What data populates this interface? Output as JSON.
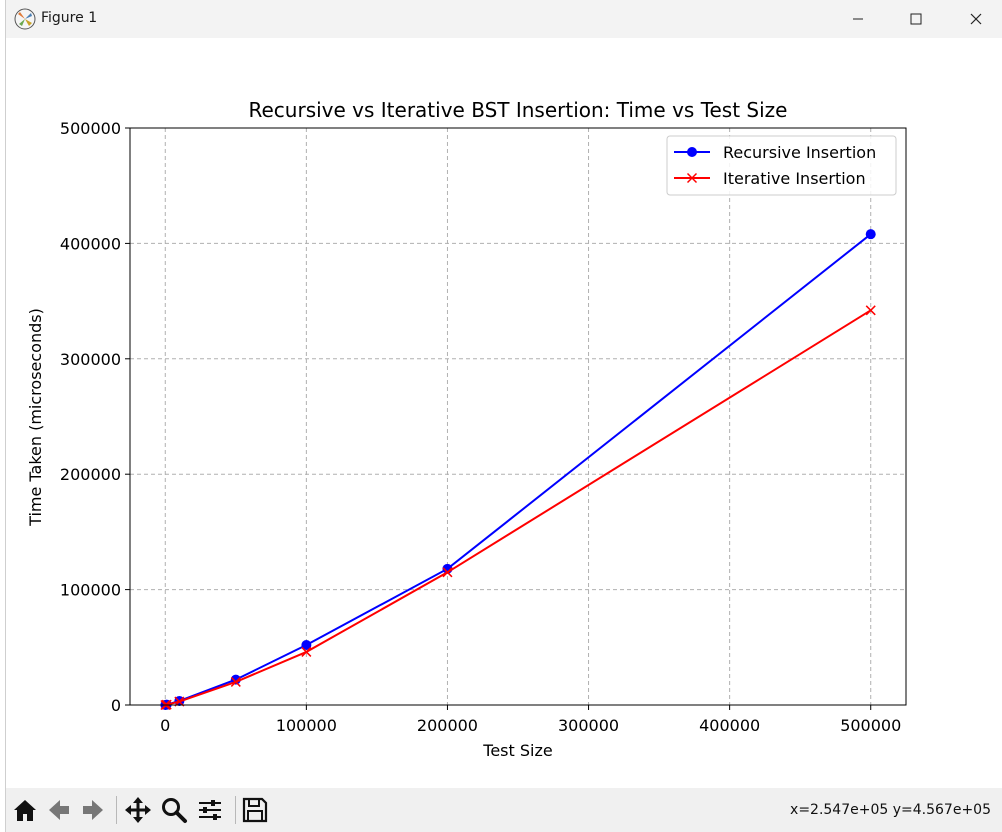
{
  "window": {
    "title": "Figure 1"
  },
  "toolbar": {
    "buttons": [
      "home-icon",
      "back-icon",
      "forward-icon",
      "pan-icon",
      "zoom-icon",
      "configure-subplots-icon",
      "save-icon"
    ],
    "coords": "x=2.547e+05 y=4.567e+05"
  },
  "chart_data": {
    "type": "line",
    "title": "Recursive vs Iterative BST Insertion: Time vs Test Size",
    "xlabel": "Test Size",
    "ylabel": "Time Taken (microseconds)",
    "xlim": [
      -25000,
      525000
    ],
    "ylim": [
      0,
      500000
    ],
    "xticks": [
      0,
      100000,
      200000,
      300000,
      400000,
      500000
    ],
    "yticks": [
      0,
      100000,
      200000,
      300000,
      400000,
      500000
    ],
    "grid": true,
    "legend_position": "top-right",
    "series": [
      {
        "name": "Recursive Insertion",
        "color": "#0000ff",
        "marker": "circle",
        "x": [
          100,
          1000,
          10000,
          50000,
          100000,
          200000,
          500000
        ],
        "y": [
          30,
          300,
          3500,
          22000,
          52000,
          118000,
          408000
        ]
      },
      {
        "name": "Iterative Insertion",
        "color": "#ff0000",
        "marker": "x",
        "x": [
          100,
          1000,
          10000,
          50000,
          100000,
          200000,
          500000
        ],
        "y": [
          25,
          260,
          3000,
          20000,
          46000,
          115000,
          342000
        ]
      }
    ]
  }
}
